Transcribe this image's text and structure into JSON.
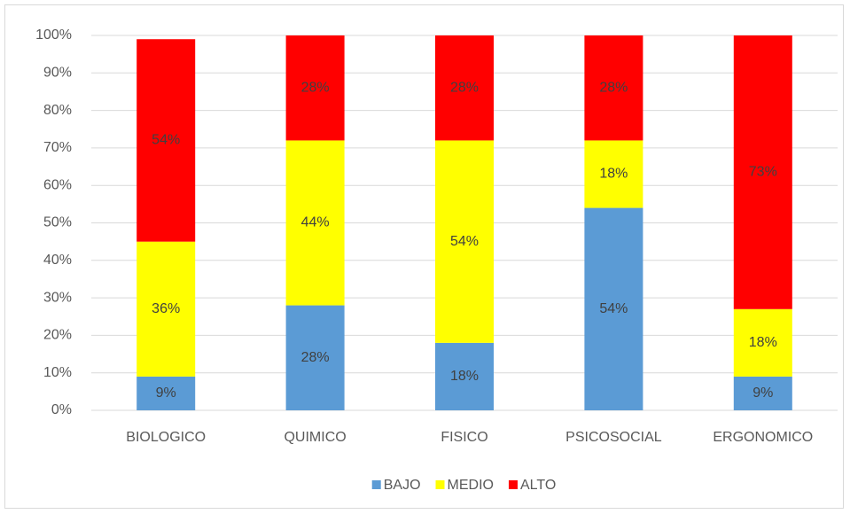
{
  "chart_data": {
    "type": "stacked_bar",
    "categories": [
      "BIOLOGICO",
      "QUIMICO",
      "FISICO",
      "PSICOSOCIAL",
      "ERGONOMICO"
    ],
    "series": [
      {
        "name": "BAJO",
        "color": "#5b9bd5",
        "values": [
          9,
          28,
          18,
          54,
          9
        ],
        "value_labels": [
          "9%",
          "28%",
          "18%",
          "54%",
          "9%"
        ]
      },
      {
        "name": "MEDIO",
        "color": "#ffff00",
        "values": [
          36,
          44,
          54,
          18,
          18
        ],
        "value_labels": [
          "36%",
          "44%",
          "54%",
          "18%",
          "18%"
        ]
      },
      {
        "name": "ALTO",
        "color": "#ff0000",
        "values": [
          54,
          28,
          28,
          28,
          73
        ],
        "value_labels": [
          "54%",
          "28%",
          "28%",
          "28%",
          "73%"
        ]
      }
    ],
    "ylim": [
      0,
      100
    ],
    "yticks": [
      {
        "value": 0,
        "label": "0%"
      },
      {
        "value": 10,
        "label": "10%"
      },
      {
        "value": 20,
        "label": "20%"
      },
      {
        "value": 30,
        "label": "30%"
      },
      {
        "value": 40,
        "label": "40%"
      },
      {
        "value": 50,
        "label": "50%"
      },
      {
        "value": 60,
        "label": "60%"
      },
      {
        "value": 70,
        "label": "70%"
      },
      {
        "value": 80,
        "label": "80%"
      },
      {
        "value": 90,
        "label": "90%"
      },
      {
        "value": 100,
        "label": "100%"
      }
    ],
    "grid": true,
    "legend": "bottom"
  }
}
